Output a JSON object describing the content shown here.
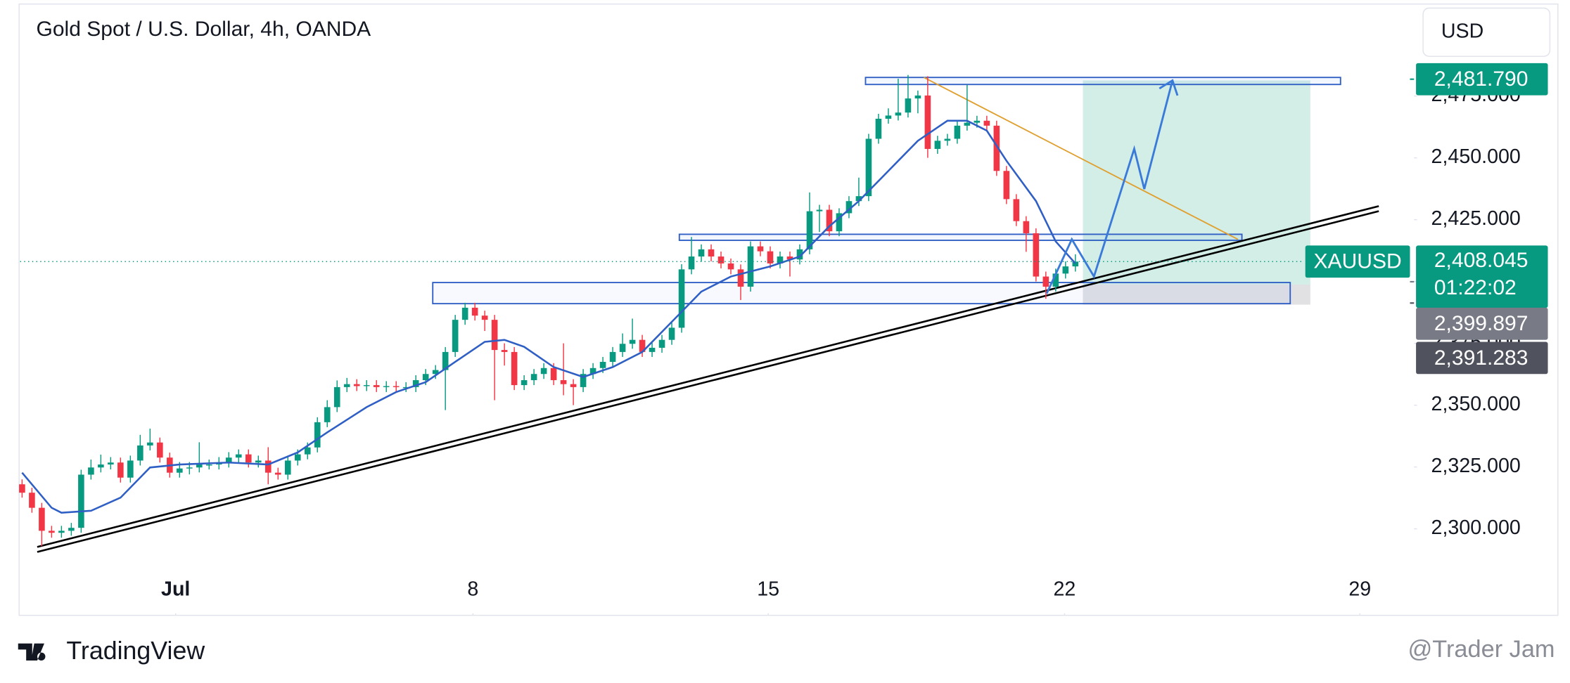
{
  "chart_data": {
    "type": "candlestick",
    "title": "Gold Spot / U.S. Dollar, 4h, OANDA",
    "currency": "USD",
    "symbol": "XAUUSD",
    "countdown": "01:22:02",
    "brand": "TradingView",
    "watermark": "@Trader Jam",
    "up_color": "#089981",
    "down_color": "#f23645",
    "ylim": [
      2282.1,
      2513.8
    ],
    "yticks": [
      {
        "value": 2300,
        "label": "2,300.000"
      },
      {
        "value": 2325,
        "label": "2,325.000"
      },
      {
        "value": 2350,
        "label": "2,350.000"
      },
      {
        "value": 2375,
        "label": "2,375.000"
      },
      {
        "value": 2400,
        "label": "2,400.000"
      },
      {
        "value": 2425,
        "label": "2,425.000"
      },
      {
        "value": 2450,
        "label": "2,450.000"
      },
      {
        "value": 2475,
        "label": "2,475.000"
      }
    ],
    "xlim": [
      -0.2,
      141.4
    ],
    "xticks": [
      {
        "value": 15.6,
        "label": "Jul"
      },
      {
        "value": 45.8,
        "label": "8"
      },
      {
        "value": 75.8,
        "label": "15"
      },
      {
        "value": 105.9,
        "label": "22"
      },
      {
        "value": 135.9,
        "label": "29"
      }
    ],
    "open": [
      2318.0,
      2314.6,
      2308.5,
      2299.2,
      2298.4,
      2299.2,
      2300.4,
      2321.9,
      2324.8,
      2326.0,
      2326.8,
      2320.7,
      2327.6,
      2333.7,
      2334.9,
      2328.8,
      2322.7,
      2324.4,
      2324.8,
      2326.0,
      2326.0,
      2326.8,
      2328.8,
      2330.1,
      2326.8,
      2327.6,
      2322.7,
      2321.9,
      2327.6,
      2330.1,
      2332.9,
      2343.1,
      2349.2,
      2357.3,
      2358.5,
      2357.7,
      2358.1,
      2357.3,
      2357.7,
      2357.3,
      2357.3,
      2360.1,
      2362.6,
      2364.2,
      2371.5,
      2384.5,
      2389.4,
      2386.2,
      2384.5,
      2372.3,
      2371.5,
      2358.1,
      2360.1,
      2362.6,
      2365.0,
      2360.1,
      2358.5,
      2357.3,
      2362.6,
      2365.0,
      2367.5,
      2371.5,
      2374.8,
      2376.4,
      2371.5,
      2373.2,
      2376.4,
      2381.3,
      2404.9,
      2410.1,
      2413.0,
      2410.1,
      2407.3,
      2404.9,
      2397.9,
      2414.2,
      2412.2,
      2407.3,
      2410.1,
      2408.9,
      2413.0,
      2428.4,
      2429.0,
      2420.3,
      2427.6,
      2432.5,
      2434.5,
      2457.7,
      2465.8,
      2467.1,
      2468.3,
      2474.0,
      2475.2,
      2453.6,
      2456.9,
      2457.7,
      2463.0,
      2464.2,
      2465.0,
      2463.0,
      2444.7,
      2433.3,
      2424.4,
      2419.5,
      2402.0,
      2397.9,
      2403.2,
      2406.1
    ],
    "high": [
      2320.0,
      2316.6,
      2310.5,
      2301.2,
      2301.2,
      2302.4,
      2323.9,
      2328.0,
      2330.0,
      2329.0,
      2328.8,
      2329.6,
      2338.0,
      2340.5,
      2336.9,
      2330.8,
      2327.0,
      2327.0,
      2335.0,
      2328.0,
      2329.0,
      2331.0,
      2332.1,
      2332.1,
      2329.6,
      2333.0,
      2324.7,
      2329.6,
      2332.1,
      2334.9,
      2345.1,
      2352.0,
      2360.0,
      2361.0,
      2360.5,
      2360.1,
      2360.1,
      2359.7,
      2359.7,
      2359.3,
      2362.1,
      2364.6,
      2366.2,
      2373.5,
      2386.5,
      2391.4,
      2391.4,
      2388.2,
      2386.5,
      2375.0,
      2373.5,
      2362.1,
      2364.6,
      2367.0,
      2367.0,
      2375.0,
      2360.5,
      2364.6,
      2367.0,
      2369.5,
      2373.5,
      2379.0,
      2385.0,
      2378.4,
      2375.2,
      2378.4,
      2383.3,
      2407.0,
      2418.0,
      2415.0,
      2415.0,
      2412.1,
      2409.3,
      2406.9,
      2416.2,
      2416.2,
      2414.2,
      2412.1,
      2412.1,
      2415.0,
      2436.0,
      2431.0,
      2431.0,
      2429.6,
      2434.5,
      2442.0,
      2459.7,
      2467.8,
      2470.0,
      2482.0,
      2483.5,
      2477.2,
      2483.0,
      2458.9,
      2459.7,
      2465.0,
      2479.5,
      2467.0,
      2467.0,
      2465.0,
      2446.7,
      2435.3,
      2426.4,
      2421.5,
      2404.0,
      2405.2,
      2408.1,
      2411.0
    ],
    "low": [
      2312.6,
      2306.5,
      2293.0,
      2296.4,
      2296.4,
      2297.2,
      2298.4,
      2319.9,
      2322.8,
      2324.0,
      2318.7,
      2318.7,
      2325.6,
      2331.7,
      2326.8,
      2320.7,
      2320.7,
      2322.0,
      2322.8,
      2324.0,
      2324.0,
      2324.8,
      2326.8,
      2324.8,
      2324.8,
      2318.0,
      2319.9,
      2319.9,
      2325.6,
      2328.1,
      2330.9,
      2341.1,
      2347.2,
      2355.3,
      2355.7,
      2355.7,
      2355.3,
      2355.3,
      2355.3,
      2355.3,
      2355.3,
      2358.1,
      2360.6,
      2348.0,
      2369.5,
      2382.5,
      2384.2,
      2380.0,
      2352.0,
      2366.0,
      2356.1,
      2356.1,
      2358.1,
      2360.6,
      2358.1,
      2354.0,
      2350.0,
      2355.3,
      2360.6,
      2363.0,
      2365.5,
      2369.5,
      2372.8,
      2369.5,
      2369.5,
      2371.2,
      2374.4,
      2379.3,
      2402.9,
      2408.1,
      2408.1,
      2405.3,
      2402.9,
      2392.5,
      2395.9,
      2410.2,
      2405.3,
      2405.3,
      2402.0,
      2406.9,
      2411.0,
      2420.0,
      2418.3,
      2418.3,
      2425.6,
      2430.5,
      2432.5,
      2455.7,
      2463.8,
      2465.1,
      2466.3,
      2468.0,
      2450.0,
      2451.6,
      2454.9,
      2455.7,
      2461.0,
      2462.2,
      2461.0,
      2442.7,
      2431.3,
      2422.4,
      2412.0,
      2400.0,
      2393.0,
      2395.9,
      2401.2,
      2404.0
    ],
    "close": [
      2314.6,
      2308.5,
      2299.2,
      2298.4,
      2299.2,
      2300.4,
      2321.9,
      2324.8,
      2326.0,
      2326.8,
      2320.7,
      2327.6,
      2333.7,
      2334.9,
      2328.8,
      2322.7,
      2324.4,
      2324.8,
      2326.0,
      2326.0,
      2326.8,
      2328.8,
      2330.1,
      2326.8,
      2327.6,
      2322.7,
      2321.9,
      2327.6,
      2330.1,
      2332.9,
      2343.1,
      2349.2,
      2357.3,
      2358.5,
      2357.7,
      2358.1,
      2357.3,
      2357.7,
      2357.3,
      2357.3,
      2360.1,
      2362.6,
      2364.2,
      2371.5,
      2384.5,
      2389.4,
      2386.2,
      2384.5,
      2372.3,
      2371.5,
      2358.1,
      2360.1,
      2362.6,
      2365.0,
      2360.1,
      2358.5,
      2357.3,
      2362.6,
      2365.0,
      2367.5,
      2371.5,
      2374.8,
      2376.4,
      2371.5,
      2373.2,
      2376.4,
      2381.3,
      2404.9,
      2410.1,
      2413.0,
      2410.1,
      2407.3,
      2404.9,
      2397.9,
      2414.2,
      2412.2,
      2407.3,
      2410.1,
      2408.9,
      2413.0,
      2428.4,
      2429.0,
      2420.3,
      2427.6,
      2432.5,
      2434.5,
      2457.7,
      2465.8,
      2467.1,
      2468.3,
      2474.0,
      2475.2,
      2453.6,
      2456.9,
      2457.7,
      2463.0,
      2464.2,
      2465.0,
      2463.0,
      2444.7,
      2433.3,
      2424.4,
      2419.5,
      2402.0,
      2397.9,
      2403.2,
      2406.1,
      2408.045
    ],
    "ma": {
      "color": "#2f5fc4",
      "x": [
        0,
        3,
        4,
        7,
        10,
        13,
        16,
        21,
        25,
        28,
        31,
        35,
        38,
        41,
        44,
        47,
        49,
        51,
        54,
        57,
        60,
        63,
        66,
        69,
        72,
        76,
        79,
        82,
        85,
        88,
        91,
        94,
        96,
        98,
        100,
        103,
        105,
        107
      ],
      "values": [
        2322.7,
        2308.5,
        2306.5,
        2307.3,
        2312.6,
        2324.8,
        2326.0,
        2326.8,
        2326.0,
        2330.9,
        2339.0,
        2349.2,
        2355.3,
        2359.3,
        2367.5,
        2375.6,
        2376.4,
        2373.6,
        2365.4,
        2361.4,
        2365.4,
        2371.5,
        2383.7,
        2395.9,
        2402.0,
        2406.1,
        2410.1,
        2422.3,
        2432.5,
        2444.7,
        2456.9,
        2465.0,
        2465.0,
        2461.0,
        2448.8,
        2432.5,
        2416.2,
        2407.3
      ]
    },
    "last_price": {
      "value": 2408.045,
      "label": "2,408.045"
    },
    "price_labels": [
      {
        "value": 2481.79,
        "label": "2,481.790",
        "color": "#089981"
      },
      {
        "value": 2399.897,
        "label": "2,399.897",
        "color": "#787b86"
      },
      {
        "value": 2391.283,
        "label": "2,391.283",
        "color": "#50535e"
      }
    ]
  }
}
